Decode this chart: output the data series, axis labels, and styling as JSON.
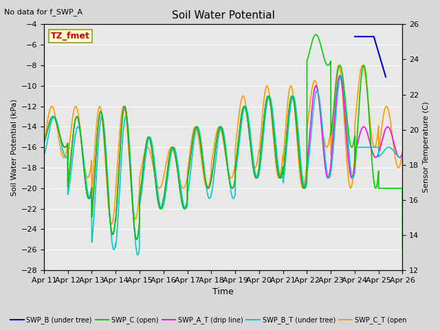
{
  "title": "Soil Water Potential",
  "note": "No data for f_SWP_A",
  "xlabel": "Time",
  "ylabel_left": "Soil Water Potential (kPa)",
  "ylabel_right": "Sensor Temperature (C)",
  "ylim_left": [
    -28,
    -4
  ],
  "ylim_right": [
    12,
    26
  ],
  "yticks_left": [
    -28,
    -26,
    -24,
    -22,
    -20,
    -18,
    -16,
    -14,
    -12,
    -10,
    -8,
    -6,
    -4
  ],
  "yticks_right": [
    12,
    14,
    16,
    18,
    20,
    22,
    24,
    26
  ],
  "xtick_labels": [
    "Apr 11",
    "Apr 12",
    "Apr 13",
    "Apr 14",
    "Apr 15",
    "Apr 16",
    "Apr 17",
    "Apr 18",
    "Apr 19",
    "Apr 20",
    "Apr 21",
    "Apr 22",
    "Apr 23",
    "Apr 24",
    "Apr 25",
    "Apr 26"
  ],
  "bg_color": "#d8d8d8",
  "plot_bg_color": "#e8e8e8",
  "tz_fmet_box": {
    "text": "TZ_fmet",
    "bg": "#ffffcc",
    "fg": "#cc0000",
    "border": "#999933"
  }
}
